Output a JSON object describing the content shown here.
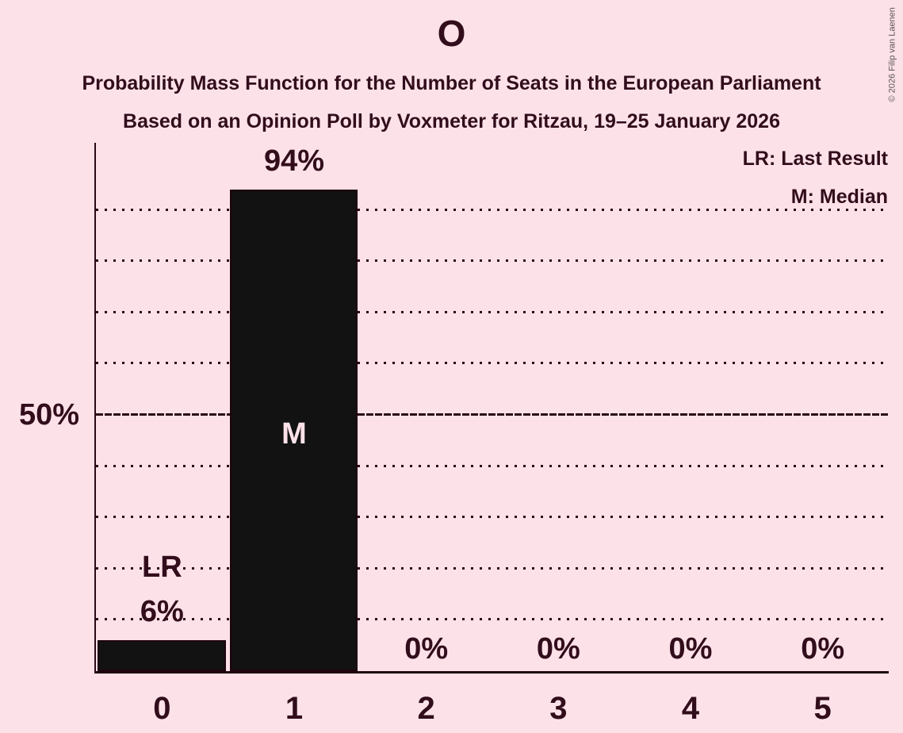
{
  "title": "O",
  "subtitle_line1": "Probability Mass Function for the Number of Seats in the European Parliament",
  "subtitle_line2": "Based on an Opinion Poll by Voxmeter for Ritzau, 19–25 January 2026",
  "legend": {
    "last_result": "LR: Last Result",
    "median": "M: Median"
  },
  "copyright": "© 2026 Filip van Laenen",
  "colors": {
    "background": "#FCE2E8",
    "bar": "#121212",
    "text": "#320D1C",
    "gridline": "#2A0916",
    "axis": "#1E040E",
    "bar_inner_label": "#FCE2E8",
    "copyright_text": "#5D5359"
  },
  "chart_data": {
    "type": "bar",
    "title": "O",
    "categories": [
      "0",
      "1",
      "2",
      "3",
      "4",
      "5"
    ],
    "values": [
      6,
      94,
      0,
      0,
      0,
      0
    ],
    "value_labels": [
      "6%",
      "94%",
      "0%",
      "0%",
      "0%",
      "0%"
    ],
    "xlabel": "",
    "ylabel": "",
    "ylim": [
      0,
      100
    ],
    "y_gridlines_pct": [
      10,
      20,
      30,
      40,
      50,
      60,
      70,
      80,
      90
    ],
    "majority_line_pct": 50,
    "y_tick_label": {
      "pct": 50,
      "label": "50%"
    },
    "grid": "dotted-horizontal",
    "legend_position": "top-right",
    "annotations": [
      {
        "category": "0",
        "label": "LR",
        "meaning": "Last Result",
        "position": "above-bar"
      },
      {
        "category": "1",
        "label": "M",
        "meaning": "Median",
        "position": "inside-bar"
      }
    ]
  }
}
